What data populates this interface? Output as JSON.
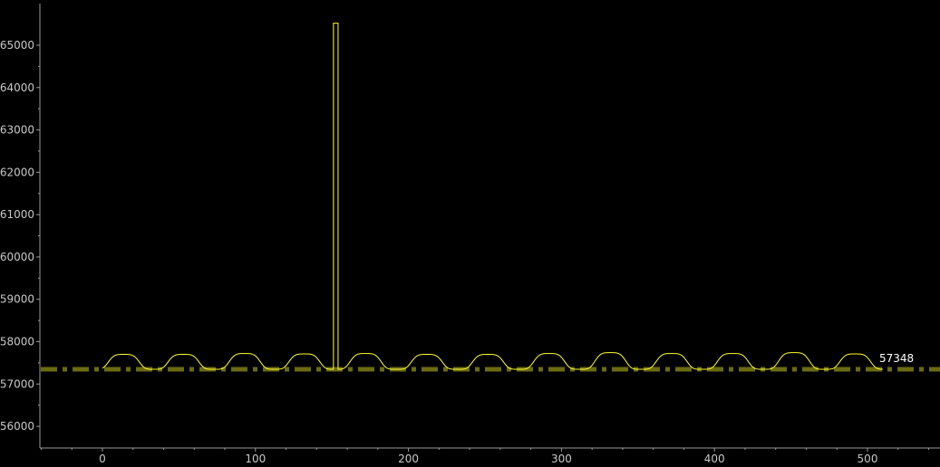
{
  "chart_data": {
    "type": "line",
    "title": "",
    "xlabel": "",
    "ylabel": "",
    "xlim": [
      -40,
      545
    ],
    "ylim": [
      55500,
      66000
    ],
    "x_ticks": [
      0,
      100,
      200,
      300,
      400,
      500
    ],
    "y_ticks": [
      56000,
      57000,
      58000,
      59000,
      60000,
      61000,
      62000,
      63000,
      64000,
      65000
    ],
    "grid": false,
    "legend": "none",
    "colors": {
      "background": "#000000",
      "axis": "#9a9a9a",
      "series": "#ffff33",
      "reference": "#6b6b12",
      "tick_text": "#c8c8c8",
      "reference_text": "#ffffff"
    },
    "series": [
      {
        "style": "solid",
        "x_start": 0,
        "x_end": 510,
        "baseline": 57348,
        "bumps": [
          {
            "center": 14,
            "peak": 57700
          },
          {
            "center": 53,
            "peak": 57700
          },
          {
            "center": 93,
            "peak": 57720
          },
          {
            "center": 132,
            "peak": 57710
          },
          {
            "center": 172,
            "peak": 57720
          },
          {
            "center": 212,
            "peak": 57700
          },
          {
            "center": 252,
            "peak": 57700
          },
          {
            "center": 292,
            "peak": 57720
          },
          {
            "center": 332,
            "peak": 57740
          },
          {
            "center": 372,
            "peak": 57720
          },
          {
            "center": 412,
            "peak": 57720
          },
          {
            "center": 452,
            "peak": 57740
          },
          {
            "center": 492,
            "peak": 57710
          }
        ],
        "spike": {
          "x_start": 151,
          "x_end": 154,
          "peak": 65520
        }
      }
    ],
    "reference_line": {
      "value": 57348,
      "label": "57348",
      "style": "dash-dot"
    }
  }
}
